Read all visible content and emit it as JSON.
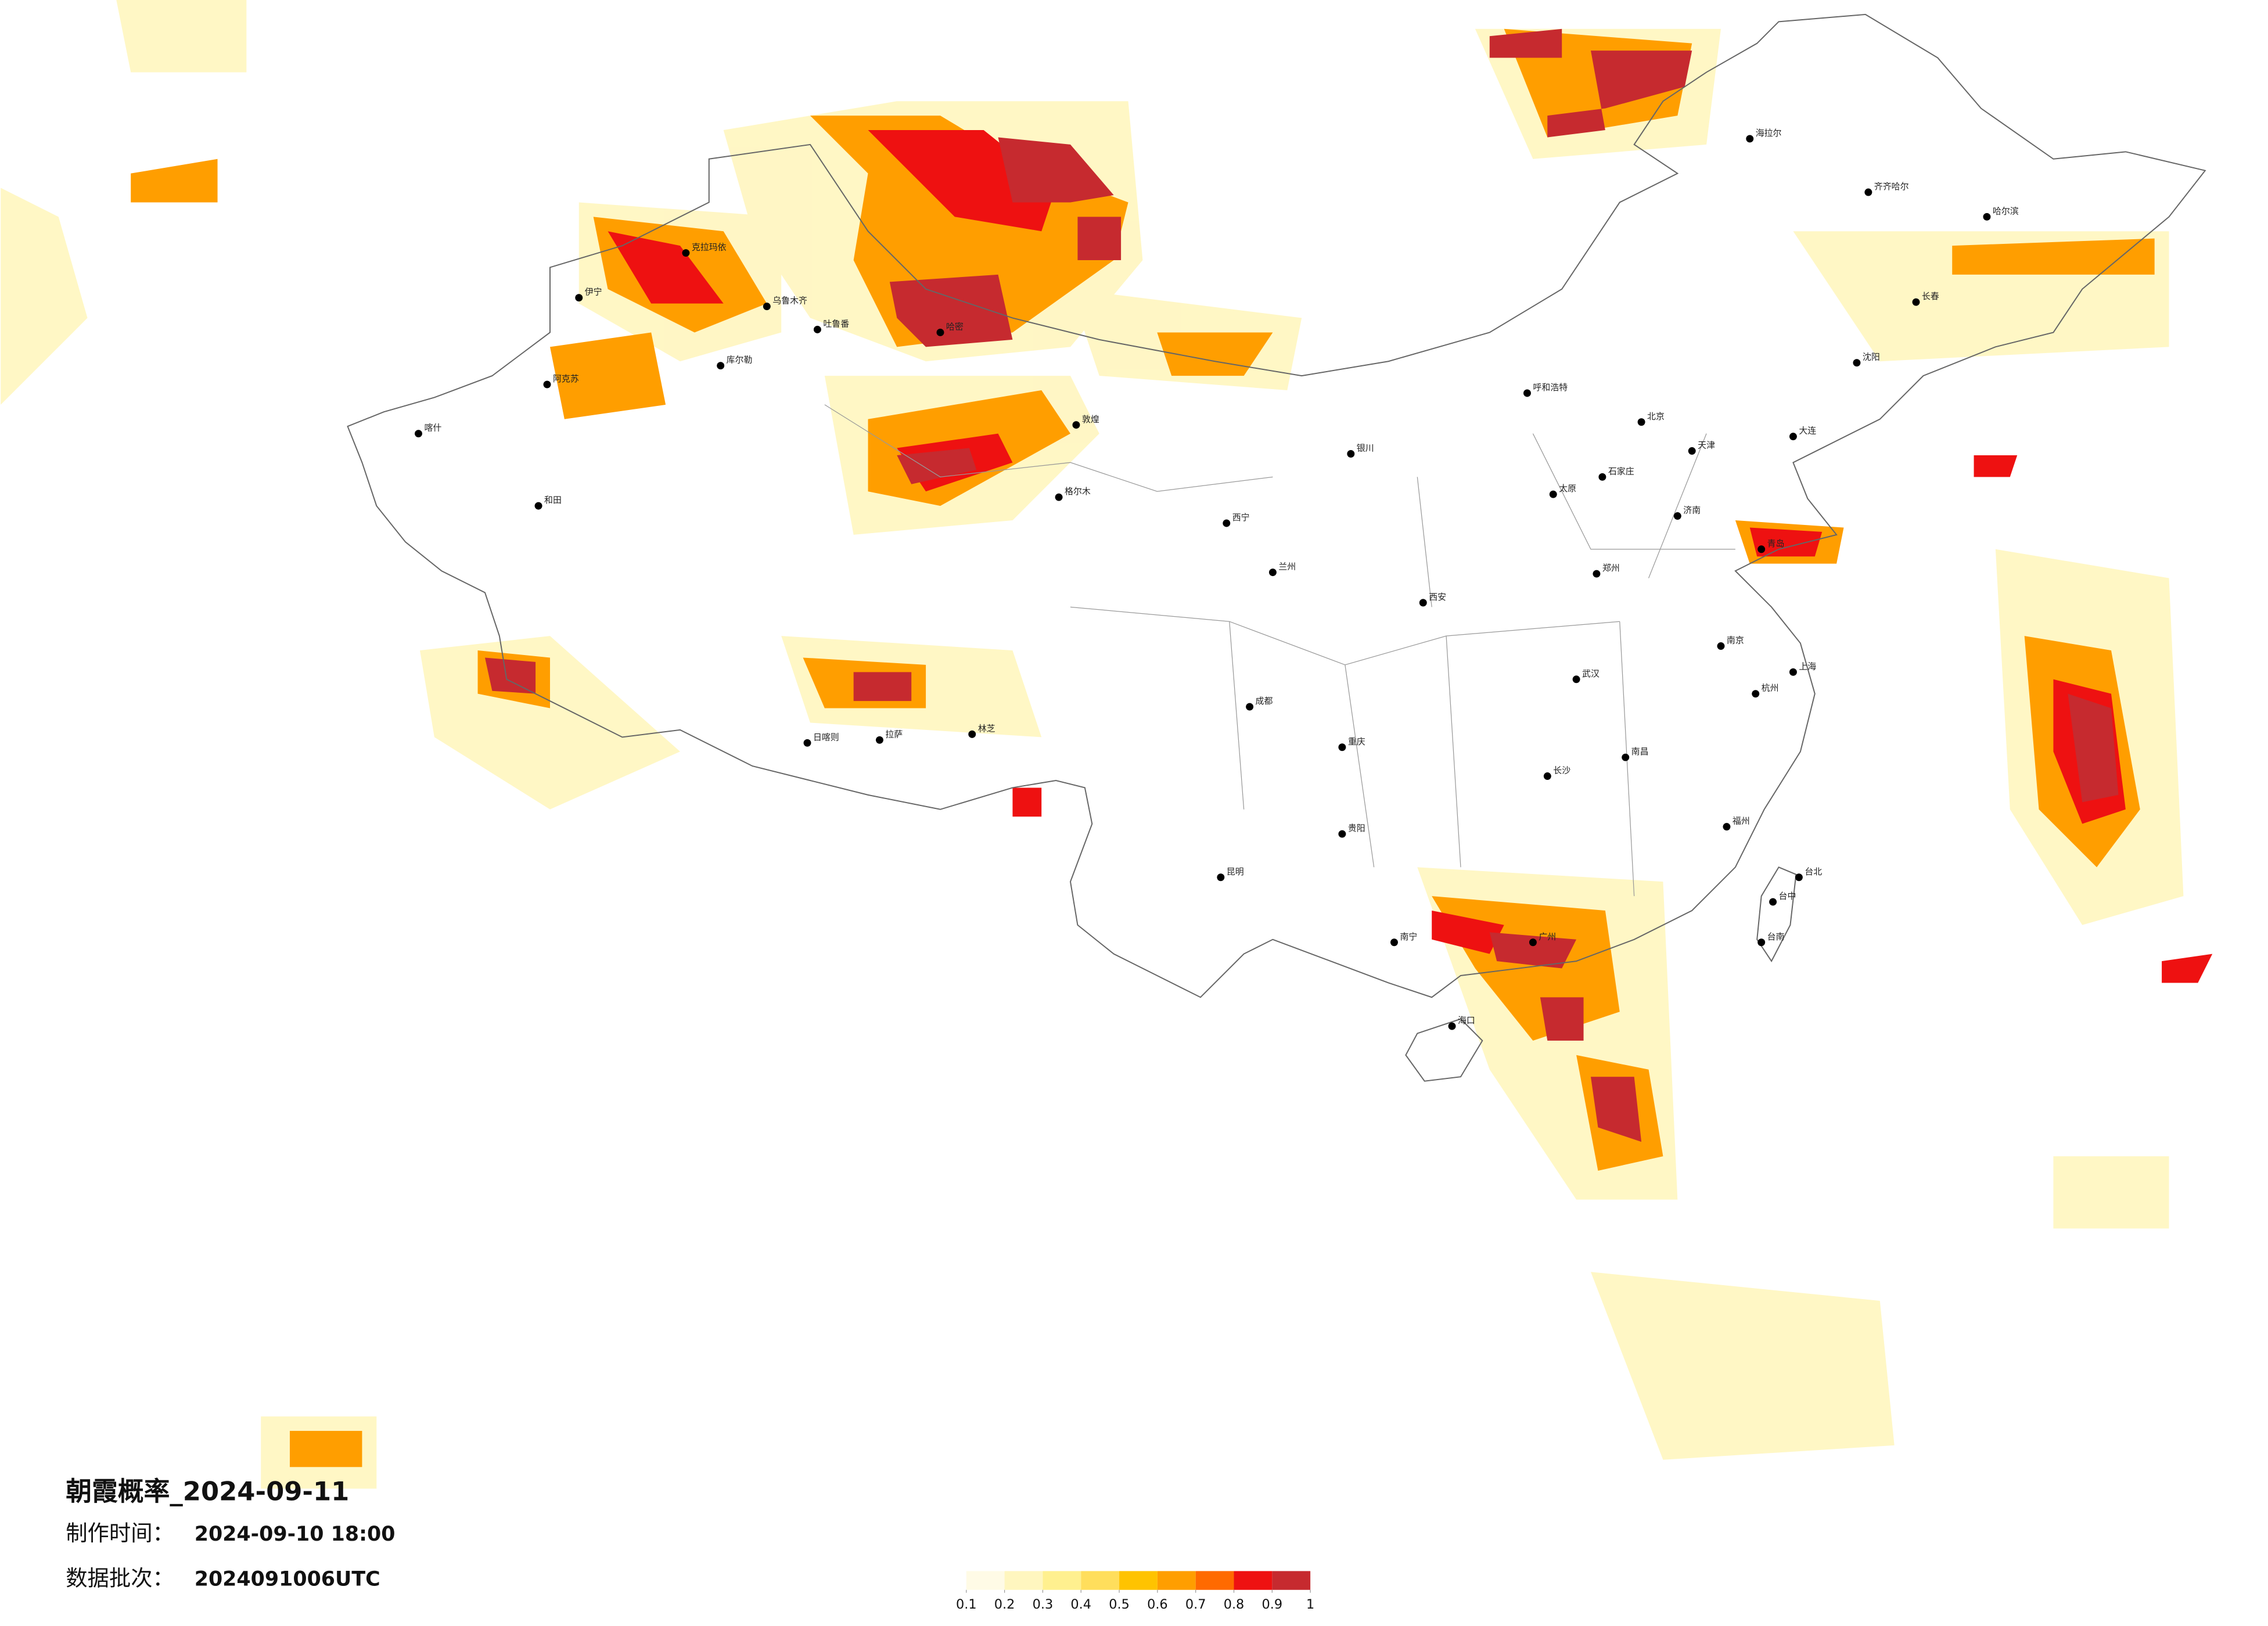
{
  "title": "朝霞概率_2024-09-11",
  "made_label": "制作时间：",
  "made_time": "2024-09-10 18:00",
  "batch_label": "数据批次：",
  "batch": "2024091006UTC",
  "legend": {
    "ticks": [
      0.1,
      0.2,
      0.3,
      0.4,
      0.5,
      0.6,
      0.7,
      0.8,
      0.9,
      1
    ],
    "colors": [
      "#fffbe6",
      "#fff6bf",
      "#fff08f",
      "#ffde5c",
      "#ffc300",
      "#ff9e00",
      "#ff6a00",
      "#ee1111",
      "#c62a2f"
    ]
  },
  "cities": [
    "克拉玛依",
    "伊宁",
    "乌鲁木齐",
    "吐鲁番",
    "阿克苏",
    "库尔勒",
    "喀什",
    "和田",
    "哈密",
    "敦煌",
    "格尔木",
    "西宁",
    "兰州",
    "拉萨",
    "日喀则",
    "林芝",
    "海拉尔",
    "齐齐哈尔",
    "哈尔滨",
    "长春",
    "沈阳",
    "大连",
    "北京",
    "天津",
    "呼和浩特",
    "银川",
    "太原",
    "石家庄",
    "济南",
    "青岛",
    "郑州",
    "西安",
    "南京",
    "上海",
    "武汉",
    "成都",
    "重庆",
    "长沙",
    "南昌",
    "杭州",
    "福州",
    "贵阳",
    "昆明",
    "南宁",
    "广州",
    "海口",
    "台北",
    "台中",
    "台南"
  ]
}
